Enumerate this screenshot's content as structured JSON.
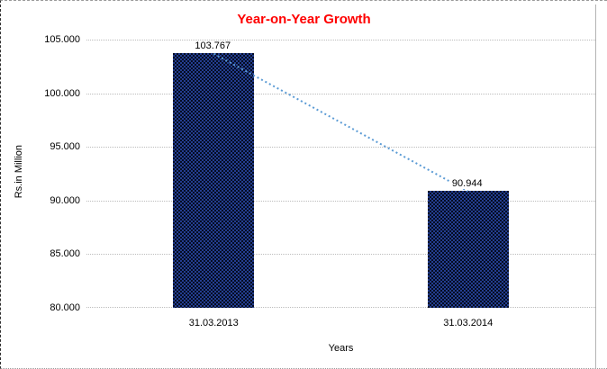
{
  "chart_data": {
    "type": "bar",
    "title": "Year-on-Year Growth",
    "title_color": "#FF0000",
    "categories": [
      "31.03.2013",
      "31.03.2014"
    ],
    "values": [
      103.767,
      90.944
    ],
    "data_labels": [
      "103.767",
      "90.944"
    ],
    "xlabel": "Years",
    "ylabel": "Rs.in Million",
    "ylim": [
      80,
      105
    ],
    "ytick_step": 5,
    "ytick_labels": [
      "105.000",
      "100.000",
      "95.000",
      "90.000",
      "85.000",
      "80.000"
    ],
    "grid": "horizontal dotted gridlines on",
    "legend": "none",
    "bar_pattern_colors": [
      "#233d8f",
      "#050d23"
    ],
    "trendline": {
      "style": "dotted",
      "color": "#5B9BD5",
      "connects": [
        "103.767",
        "90.944"
      ]
    }
  }
}
